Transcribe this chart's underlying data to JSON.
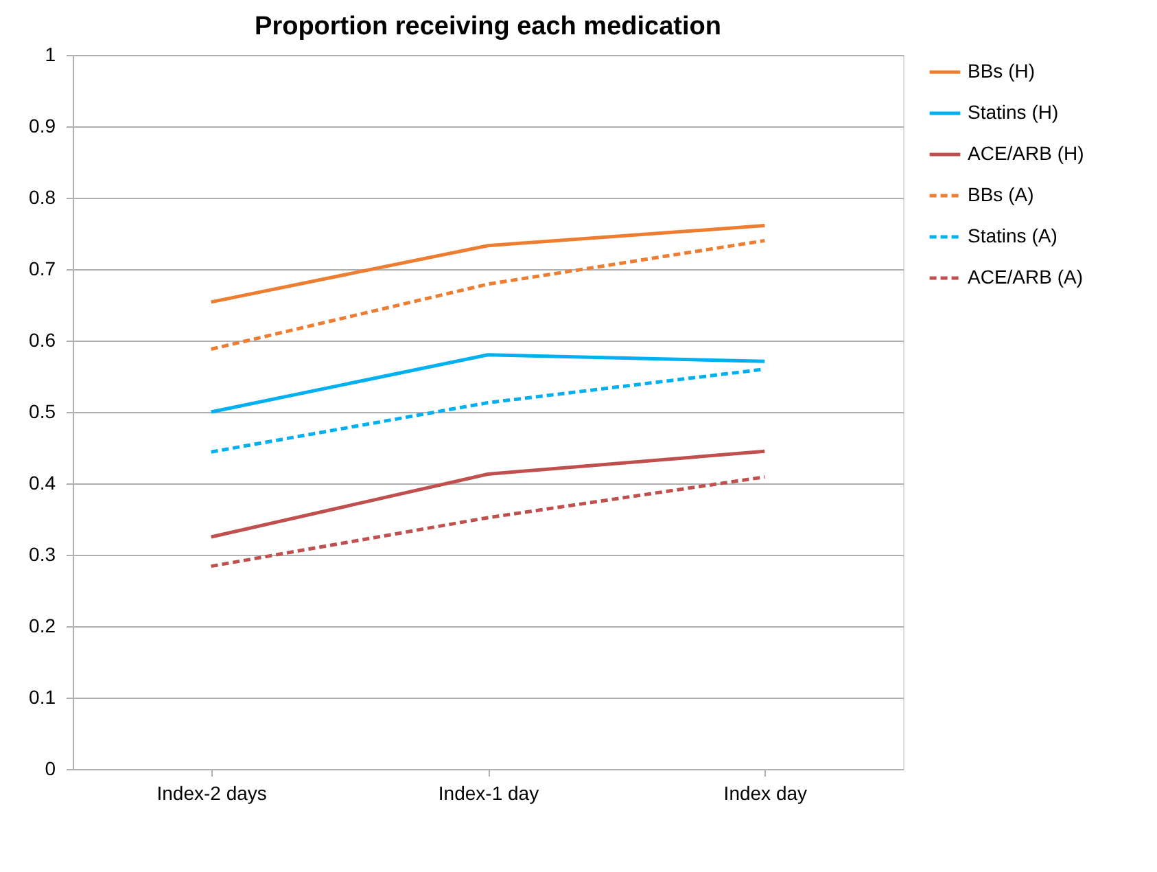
{
  "chart_data": {
    "type": "line",
    "title": "Proportion receiving each medication",
    "categories": [
      "Index-2 days",
      "Index-1 day",
      "Index day"
    ],
    "series": [
      {
        "name": "BBs (H)",
        "color": "#ed7d31",
        "line_style": "solid",
        "values": [
          0.654,
          0.733,
          0.761
        ]
      },
      {
        "name": "Statins (H)",
        "color": "#00b0f0",
        "line_style": "solid",
        "values": [
          0.5,
          0.58,
          0.571
        ]
      },
      {
        "name": "ACE/ARB (H)",
        "color": "#c0504d",
        "line_style": "solid",
        "values": [
          0.325,
          0.413,
          0.445
        ]
      },
      {
        "name": "BBs (A)",
        "color": "#ed7d31",
        "line_style": "dashed",
        "values": [
          0.588,
          0.679,
          0.74
        ]
      },
      {
        "name": "Statins (A)",
        "color": "#00b0f0",
        "line_style": "dashed",
        "values": [
          0.444,
          0.513,
          0.56
        ]
      },
      {
        "name": "ACE/ARB (A)",
        "color": "#c0504d",
        "line_style": "dashed",
        "values": [
          0.284,
          0.352,
          0.409
        ]
      }
    ],
    "ylim": [
      0,
      1
    ],
    "yticks": [
      0,
      0.1,
      0.2,
      0.3,
      0.4,
      0.5,
      0.6,
      0.7,
      0.8,
      0.9,
      1
    ],
    "grid": "y",
    "legend": "right",
    "marker": "none"
  }
}
